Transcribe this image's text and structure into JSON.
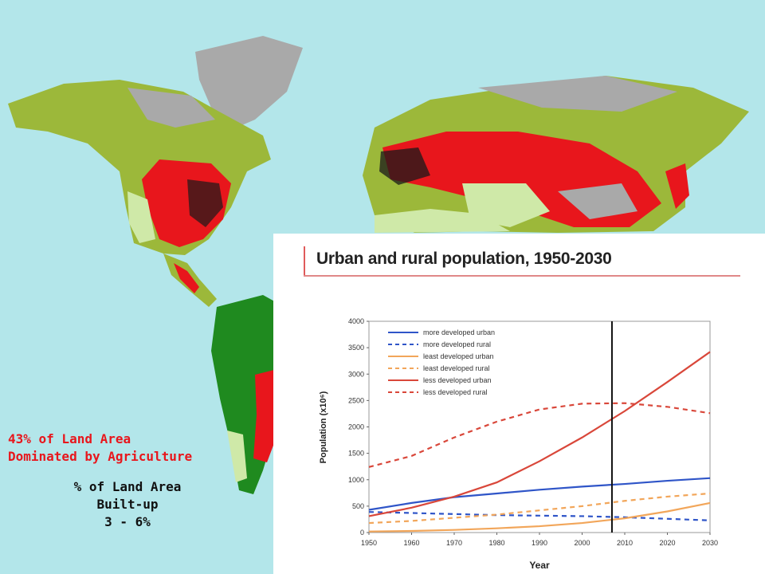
{
  "captions": {
    "agriculture_line1": "43% of Land Area",
    "agriculture_line2": "Dominated by Agriculture",
    "builtup_line1": "% of Land Area",
    "builtup_line2": "Built-up",
    "builtup_line3": "3 - 6%"
  },
  "map_colors": {
    "ocean": "#b3e6ea",
    "agriculture": "#e8161c",
    "forest": "#1f8a1f",
    "grassland": "#9cb83a",
    "light_vegetation": "#cfe9a8",
    "barren": "#a9a9a9",
    "urban": "#1a1a1a"
  },
  "chart_data": {
    "type": "line",
    "title": "Urban and rural population, 1950-2030",
    "xlabel": "Year",
    "ylabel": "Population (x10⁶)",
    "xlim": [
      1950,
      2030
    ],
    "ylim": [
      0,
      4000
    ],
    "xticks": [
      1950,
      1960,
      1970,
      1980,
      1990,
      2000,
      2010,
      2020,
      2030
    ],
    "yticks": [
      0,
      500,
      1000,
      1500,
      2000,
      2500,
      3000,
      3500,
      4000
    ],
    "vertical_marker": 2007,
    "x": [
      1950,
      1960,
      1970,
      1980,
      1990,
      2000,
      2010,
      2020,
      2030
    ],
    "series": [
      {
        "name": "more developed urban",
        "color": "#2f55c8",
        "dash": "solid",
        "values": [
          430,
          560,
          670,
          740,
          810,
          870,
          920,
          980,
          1030
        ]
      },
      {
        "name": "more developed rural",
        "color": "#2f55c8",
        "dash": "dashed",
        "values": [
          390,
          370,
          350,
          330,
          320,
          310,
          290,
          260,
          230
        ]
      },
      {
        "name": "least developed urban",
        "color": "#f2a65a",
        "dash": "solid",
        "values": [
          20,
          30,
          50,
          80,
          120,
          180,
          270,
          400,
          560
        ]
      },
      {
        "name": "least developed rural",
        "color": "#f2a65a",
        "dash": "dashed",
        "values": [
          180,
          220,
          280,
          340,
          420,
          500,
          600,
          680,
          740
        ]
      },
      {
        "name": "less developed urban",
        "color": "#d9473a",
        "dash": "solid",
        "values": [
          310,
          470,
          680,
          950,
          1350,
          1800,
          2300,
          2850,
          3420
        ]
      },
      {
        "name": "less developed rural",
        "color": "#d9473a",
        "dash": "dashed",
        "values": [
          1240,
          1450,
          1800,
          2100,
          2330,
          2440,
          2450,
          2380,
          2260
        ]
      }
    ],
    "legend_position": "top-left",
    "grid": false
  }
}
